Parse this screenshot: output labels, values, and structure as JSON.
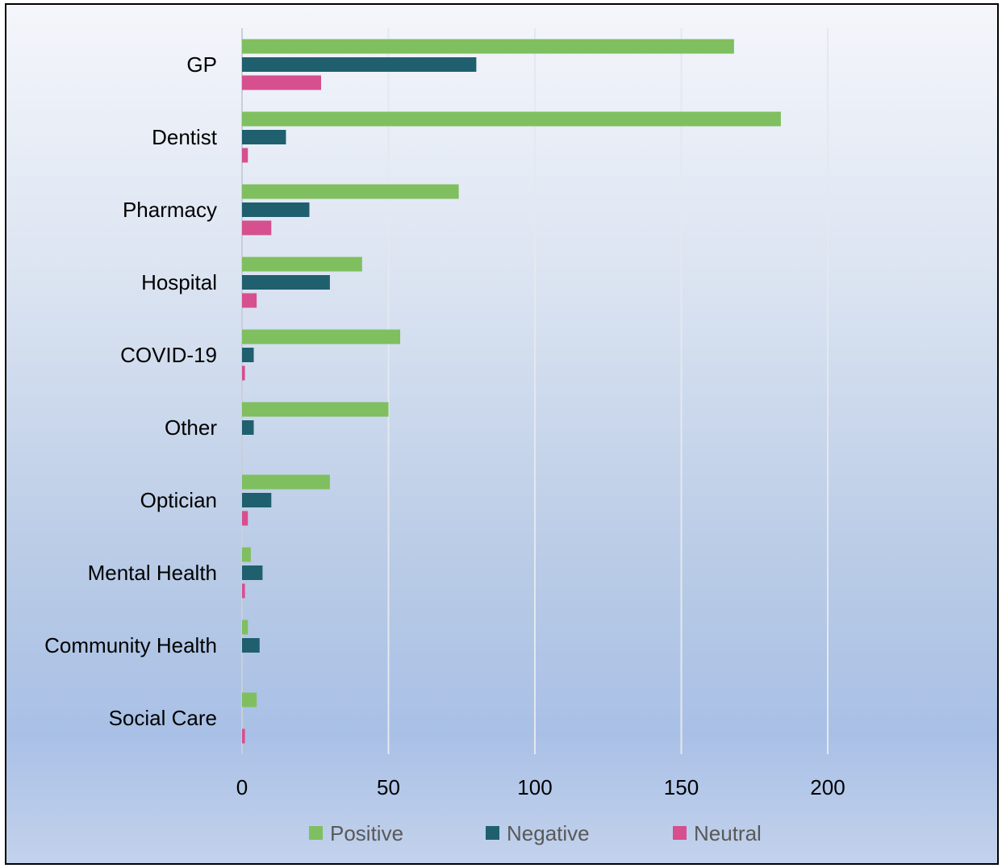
{
  "chart_data": {
    "type": "bar",
    "orientation": "horizontal",
    "title": "",
    "xlabel": "",
    "ylabel": "",
    "categories": [
      "GP",
      "Dentist",
      "Pharmacy",
      "Hospital",
      "COVID-19",
      "Other",
      "Optician",
      "Mental Health",
      "Community Health",
      "Social Care"
    ],
    "series": [
      {
        "name": "Positive",
        "color": "#7fbf5f",
        "values": [
          168,
          184,
          74,
          41,
          54,
          50,
          30,
          3,
          2,
          5
        ]
      },
      {
        "name": "Negative",
        "color": "#1f5f6e",
        "values": [
          80,
          15,
          23,
          30,
          4,
          4,
          10,
          7,
          6,
          0
        ]
      },
      {
        "name": "Neutral",
        "color": "#d64f8f",
        "values": [
          27,
          2,
          10,
          5,
          1,
          0,
          2,
          1,
          0,
          1
        ]
      }
    ],
    "xlim": [
      0,
      200
    ],
    "xticks": [
      "0",
      "50",
      "100",
      "150",
      "200"
    ],
    "grid": true,
    "legend_position": "bottom"
  }
}
